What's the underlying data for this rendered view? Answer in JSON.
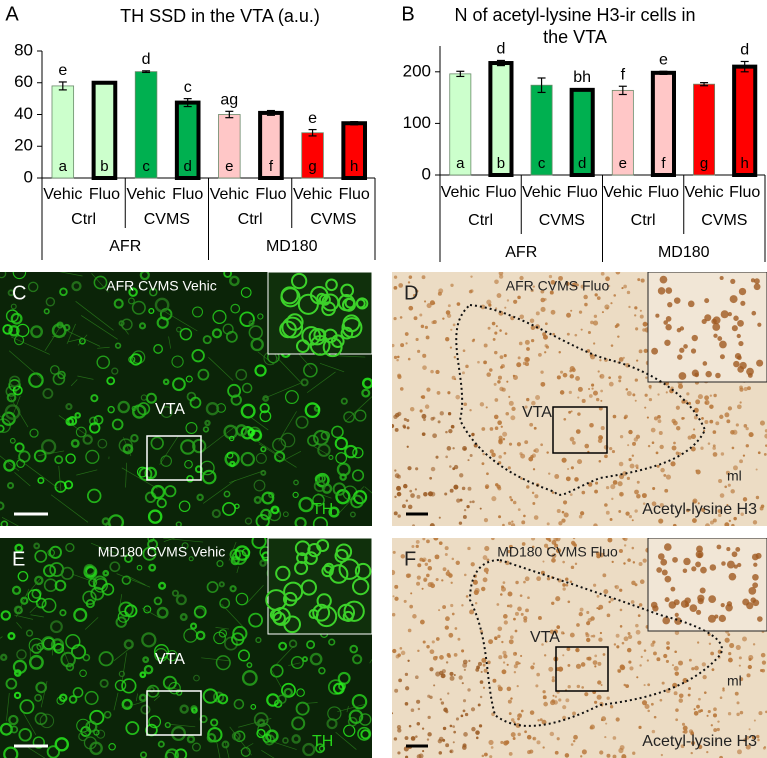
{
  "chart_data": [
    {
      "type": "bar",
      "panel": "A",
      "title": "TH SSD in the VTA (a.u.)",
      "categories": [
        "Vehic",
        "Fluo",
        "Vehic",
        "Fluo",
        "Vehic",
        "Fluo",
        "Vehic",
        "Fluo"
      ],
      "subgroups": [
        "Ctrl",
        "CVMS",
        "Ctrl",
        "CVMS"
      ],
      "groups": [
        "AFR",
        "MD180"
      ],
      "values": [
        58,
        60,
        67,
        47.5,
        40,
        41,
        28.5,
        34.5
      ],
      "errors": [
        2.5,
        0.5,
        0.5,
        2.5,
        2,
        1.5,
        2,
        1
      ],
      "colors": [
        "#ccffcc",
        "#ccffcc",
        "#00b050",
        "#00b050",
        "#ffc7c7",
        "#ffc7c7",
        "#ff0000",
        "#ff0000"
      ],
      "outlined": [
        false,
        true,
        false,
        true,
        false,
        true,
        false,
        true
      ],
      "top_labels": [
        "e",
        null,
        "d",
        "c",
        "ag",
        null,
        "e",
        null
      ],
      "bar_labels": [
        "a",
        "b",
        "c",
        "d",
        "e",
        "f",
        "g",
        "h"
      ],
      "ylim": [
        0,
        80
      ],
      "yticks": [
        0,
        20,
        40,
        60,
        80
      ]
    },
    {
      "type": "bar",
      "panel": "B",
      "title": "N of acetyl-lysine H3-ir cells in the VTA",
      "categories": [
        "Vehic",
        "Fluo",
        "Vehic",
        "Fluo",
        "Vehic",
        "Fluo",
        "Vehic",
        "Fluo"
      ],
      "subgroups": [
        "Ctrl",
        "CVMS",
        "Ctrl",
        "CVMS"
      ],
      "groups": [
        "AFR",
        "MD180"
      ],
      "values": [
        196,
        217,
        174,
        165,
        164,
        198,
        176,
        210
      ],
      "errors": [
        5,
        5,
        14,
        2,
        8,
        3,
        3,
        10
      ],
      "colors": [
        "#ccffcc",
        "#ccffcc",
        "#00b050",
        "#00b050",
        "#ffc7c7",
        "#ffc7c7",
        "#ff0000",
        "#ff0000"
      ],
      "outlined": [
        false,
        true,
        false,
        true,
        false,
        true,
        false,
        true
      ],
      "top_labels": [
        null,
        "d",
        null,
        "bh",
        "f",
        "e",
        null,
        "d"
      ],
      "bar_labels": [
        "a",
        "b",
        "c",
        "d",
        "e",
        "f",
        "g",
        "h"
      ],
      "ylim": [
        0,
        250
      ],
      "yticks": [
        0,
        100,
        200
      ]
    }
  ],
  "panels": [
    {
      "letter": "C",
      "caption": "AFR CVMS Vehic",
      "region": "VTA",
      "stain": "TH",
      "kind": "fluorescence"
    },
    {
      "letter": "D",
      "caption": "AFR CVMS Fluo",
      "region": "VTA",
      "stain": "Acetyl-lysine H3",
      "landmark": "ml",
      "kind": "dab"
    },
    {
      "letter": "E",
      "caption": "MD180 CVMS Vehic",
      "region": "VTA",
      "stain": "TH",
      "kind": "fluorescence"
    },
    {
      "letter": "F",
      "caption": "MD180 CVMS Fluo",
      "region": "VTA",
      "stain": "Acetyl-lysine H3",
      "landmark": "ml",
      "kind": "dab"
    }
  ]
}
